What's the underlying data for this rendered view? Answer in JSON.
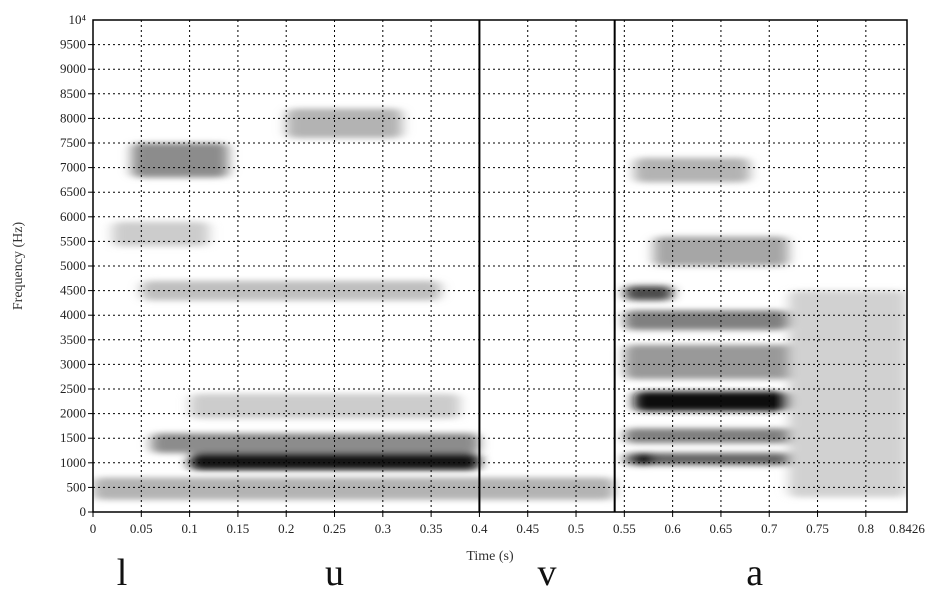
{
  "chart_data": {
    "type": "heatmap",
    "title": "",
    "xlabel": "Time (s)",
    "ylabel": "Frequency (Hz)",
    "xlim": [
      0,
      0.8426
    ],
    "ylim": [
      0,
      10000
    ],
    "grid": true,
    "colormap": "grayscale (darker = more energy)",
    "x_ticks": [
      0,
      0.05,
      0.1,
      0.15,
      0.2,
      0.25,
      0.3,
      0.35,
      0.4,
      0.45,
      0.5,
      0.55,
      0.6,
      0.65,
      0.7,
      0.75,
      0.8
    ],
    "x_tick_labels": [
      "0",
      "0.05",
      "0.1",
      "0.15",
      "0.2",
      "0.25",
      "0.3",
      "0.35",
      "0.4",
      "0.45",
      "0.5",
      "0.55",
      "0.6",
      "0.65",
      "0.7",
      "0.75",
      "0.8"
    ],
    "x_end_label": "0.8426",
    "y_ticks": [
      0,
      500,
      1000,
      1500,
      2000,
      2500,
      3000,
      3500,
      4000,
      4500,
      5000,
      5500,
      6000,
      6500,
      7000,
      7500,
      8000,
      8500,
      9000,
      9500
    ],
    "y_tick_labels": [
      "0",
      "500",
      "1000",
      "1500",
      "2000",
      "2500",
      "3000",
      "3500",
      "4000",
      "4500",
      "5000",
      "5500",
      "6000",
      "6500",
      "7000",
      "7500",
      "8000",
      "8500",
      "9000",
      "9500"
    ],
    "y_top_label": "10⁴",
    "segment_boundaries": [
      0.4,
      0.54
    ],
    "segments": [
      {
        "label": "l",
        "t": 0.03
      },
      {
        "label": "u",
        "t": 0.25
      },
      {
        "label": "v",
        "t": 0.47
      },
      {
        "label": "a",
        "t": 0.685
      }
    ],
    "energy_regions": [
      {
        "t0": 0.1,
        "t1": 0.4,
        "f0": 850,
        "f1": 1200,
        "intensity": 0.9
      },
      {
        "t0": 0.06,
        "t1": 0.4,
        "f0": 1200,
        "f1": 1600,
        "intensity": 0.45
      },
      {
        "t0": 0.0,
        "t1": 0.54,
        "f0": 250,
        "f1": 700,
        "intensity": 0.3
      },
      {
        "t0": 0.1,
        "t1": 0.38,
        "f0": 1900,
        "f1": 2400,
        "intensity": 0.2
      },
      {
        "t0": 0.04,
        "t1": 0.14,
        "f0": 6800,
        "f1": 7500,
        "intensity": 0.45
      },
      {
        "t0": 0.2,
        "t1": 0.32,
        "f0": 7600,
        "f1": 8200,
        "intensity": 0.3
      },
      {
        "t0": 0.05,
        "t1": 0.36,
        "f0": 4300,
        "f1": 4700,
        "intensity": 0.25
      },
      {
        "t0": 0.02,
        "t1": 0.12,
        "f0": 5400,
        "f1": 5900,
        "intensity": 0.2
      },
      {
        "t0": 0.55,
        "t1": 0.75,
        "f0": 950,
        "f1": 1200,
        "intensity": 0.6
      },
      {
        "t0": 0.55,
        "t1": 0.73,
        "f0": 1400,
        "f1": 1700,
        "intensity": 0.5
      },
      {
        "t0": 0.56,
        "t1": 0.72,
        "f0": 2050,
        "f1": 2450,
        "intensity": 0.95
      },
      {
        "t0": 0.55,
        "t1": 0.75,
        "f0": 2700,
        "f1": 3400,
        "intensity": 0.4
      },
      {
        "t0": 0.55,
        "t1": 0.72,
        "f0": 3700,
        "f1": 4100,
        "intensity": 0.5
      },
      {
        "t0": 0.55,
        "t1": 0.6,
        "f0": 4300,
        "f1": 4600,
        "intensity": 0.7
      },
      {
        "t0": 0.58,
        "t1": 0.72,
        "f0": 5000,
        "f1": 5600,
        "intensity": 0.35
      },
      {
        "t0": 0.56,
        "t1": 0.68,
        "f0": 6700,
        "f1": 7200,
        "intensity": 0.3
      },
      {
        "t0": 0.56,
        "t1": 0.58,
        "f0": 950,
        "f1": 1200,
        "intensity": 1.0
      },
      {
        "t0": 0.72,
        "t1": 0.8426,
        "f0": 300,
        "f1": 4500,
        "intensity": 0.18
      }
    ]
  }
}
